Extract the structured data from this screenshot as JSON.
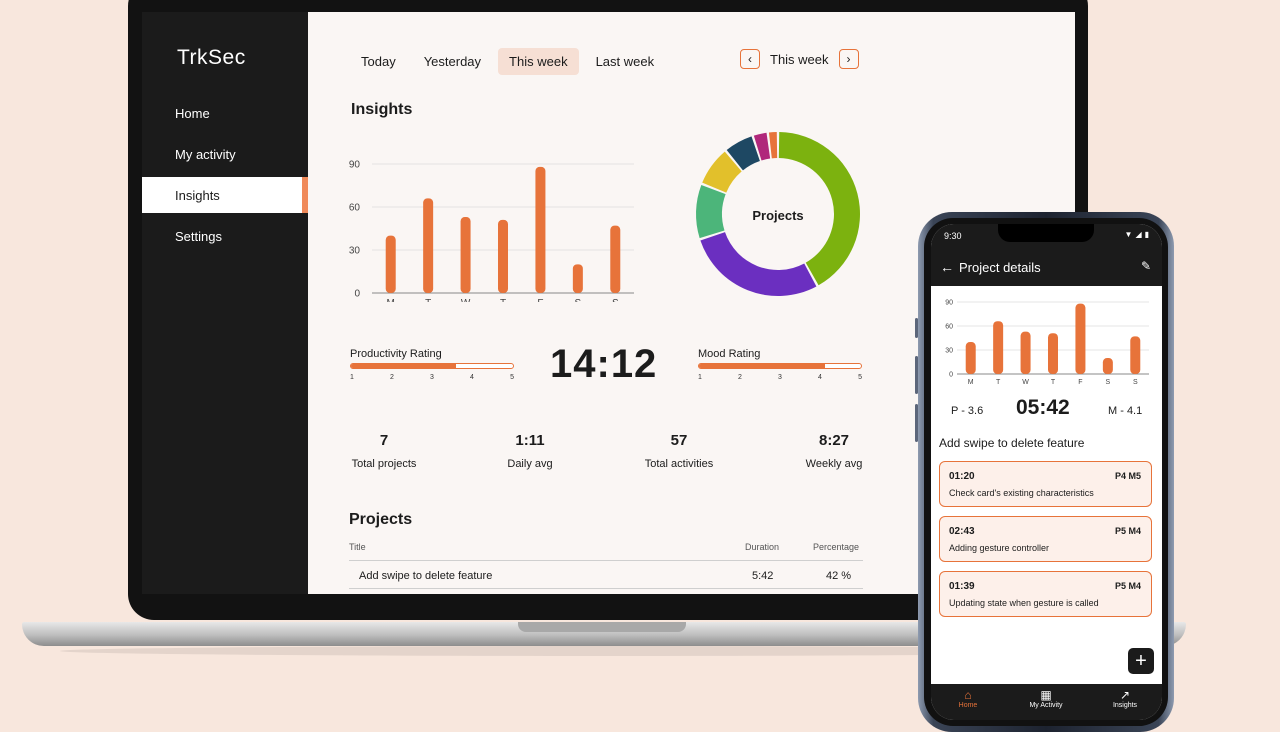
{
  "laptop": {
    "brand": "TrkSec",
    "nav": [
      {
        "label": "Home"
      },
      {
        "label": "My activity"
      },
      {
        "label": "Insights",
        "active": true
      },
      {
        "label": "Settings"
      }
    ],
    "tabs": [
      {
        "label": "Today"
      },
      {
        "label": "Yesterday"
      },
      {
        "label": "This week",
        "active": true
      },
      {
        "label": "Last week"
      }
    ],
    "week_nav": {
      "prev": "‹",
      "label": "This week",
      "next": "›"
    },
    "insights_title": "Insights",
    "productivity": {
      "label": "Productivity Rating",
      "value": 3.6,
      "ticks": [
        "1",
        "2",
        "3",
        "4",
        "5"
      ]
    },
    "mood": {
      "label": "Mood Rating",
      "value": 4.1,
      "ticks": [
        "1",
        "2",
        "3",
        "4",
        "5"
      ]
    },
    "timer": "14:12",
    "stats": [
      {
        "value": "7",
        "label": "Total projects"
      },
      {
        "value": "1:11",
        "label": "Daily avg"
      },
      {
        "value": "57",
        "label": "Total activities"
      },
      {
        "value": "8:27",
        "label": "Weekly avg"
      }
    ],
    "projects": {
      "title": "Projects",
      "headers": {
        "title": "Title",
        "duration": "Duration",
        "percentage": "Percentage"
      },
      "rows": [
        {
          "title": "Add swipe to delete feature",
          "duration": "5:42",
          "percentage": "42 %"
        }
      ]
    }
  },
  "phone": {
    "status_time": "9:30",
    "title": "Project details",
    "productivity": "P - 3.6",
    "timer": "05:42",
    "mood": "M - 4.1",
    "section": "Add swipe to delete feature",
    "tasks": [
      {
        "time": "01:20",
        "tags": "P4  M5",
        "desc": "Check card's existing characteristics"
      },
      {
        "time": "02:43",
        "tags": "P5  M4",
        "desc": "Adding gesture controller"
      },
      {
        "time": "01:39",
        "tags": "P5  M4",
        "desc": "Updating state when gesture is called"
      }
    ],
    "fab": "+",
    "bottom_nav": [
      {
        "label": "Home",
        "icon": "home-icon",
        "active": true
      },
      {
        "label": "My Activity",
        "icon": "calendar-icon"
      },
      {
        "label": "Insights",
        "icon": "trend-icon"
      }
    ]
  },
  "colors": {
    "accent": "#e7733a",
    "dark": "#1b1b1b",
    "screen_bg": "#faf6f4",
    "page_bg": "#f8e7dd"
  },
  "chart_data": [
    {
      "type": "bar",
      "categories": [
        "M",
        "T",
        "W",
        "T",
        "F",
        "S",
        "S"
      ],
      "values": [
        40,
        66,
        53,
        51,
        88,
        20,
        47
      ],
      "yticks": [
        "0",
        "30",
        "60",
        "90"
      ],
      "ylim": [
        0,
        90
      ],
      "grid": true,
      "color": "#e7733a"
    },
    {
      "type": "pie",
      "center_label": "Projects",
      "slices": [
        {
          "value": 42,
          "color": "#7cb20f"
        },
        {
          "value": 28,
          "color": "#6b2fc0"
        },
        {
          "value": 11,
          "color": "#4cb57a"
        },
        {
          "value": 8,
          "color": "#e2c02b"
        },
        {
          "value": 6,
          "color": "#1e4863"
        },
        {
          "value": 3,
          "color": "#b0277b"
        },
        {
          "value": 2,
          "color": "#e7733a"
        }
      ]
    },
    {
      "type": "bar",
      "categories": [
        "M",
        "T",
        "W",
        "T",
        "F",
        "S",
        "S"
      ],
      "values": [
        40,
        66,
        53,
        51,
        88,
        20,
        47
      ],
      "yticks": [
        "0",
        "30",
        "60",
        "90"
      ],
      "ylim": [
        0,
        90
      ],
      "grid": true,
      "color": "#e7733a"
    }
  ]
}
